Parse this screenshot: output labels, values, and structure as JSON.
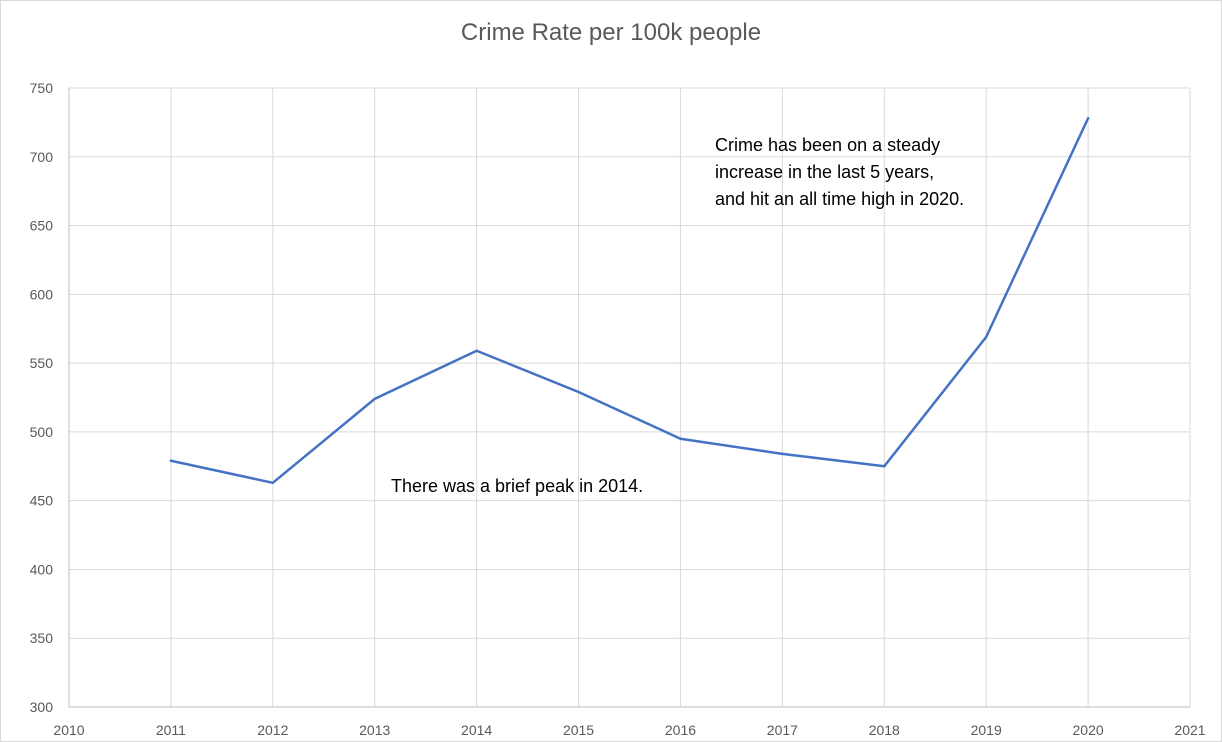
{
  "chart_data": {
    "type": "line",
    "title": "Crime Rate per 100k people",
    "xlabel": "",
    "ylabel": "",
    "xlim": [
      2010,
      2021
    ],
    "ylim": [
      300,
      750
    ],
    "x_ticks": [
      2010,
      2011,
      2012,
      2013,
      2014,
      2015,
      2016,
      2017,
      2018,
      2019,
      2020,
      2021
    ],
    "y_ticks": [
      300,
      350,
      400,
      450,
      500,
      550,
      600,
      650,
      700,
      750
    ],
    "grid": true,
    "legend": "none",
    "series": [
      {
        "color": "#4472c4",
        "x": [
          2011,
          2012,
          2013,
          2014,
          2015,
          2016,
          2017,
          2018,
          2019,
          2020
        ],
        "values": [
          479,
          463,
          524,
          559,
          529,
          495,
          484,
          475,
          569,
          728
        ]
      }
    ],
    "annotations": {
      "peak": "There was a brief peak in 2014.",
      "trend_lines": [
        "Crime has been on a steady",
        "increase in the last 5 years,",
        "and hit an all time high in 2020."
      ]
    }
  }
}
